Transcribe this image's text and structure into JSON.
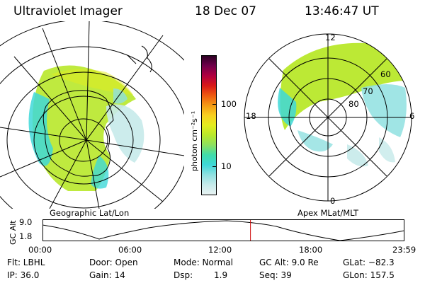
{
  "header": {
    "instrument": "Ultraviolet Imager",
    "date": "18 Dec 07",
    "time": "13:46:47 UT"
  },
  "left_map": {
    "caption": "Geographic Lat/Lon"
  },
  "right_map": {
    "caption": "Apex MLat/MLT",
    "mlt_labels": {
      "top": "12",
      "bottom": "0",
      "left": "18",
      "right": "6"
    },
    "mlat_labels": [
      "60",
      "70",
      "80"
    ]
  },
  "colorbar": {
    "unit_label": "photon cm⁻²s⁻¹",
    "ticks": [
      {
        "label": "100",
        "value": 100
      },
      {
        "label": "10",
        "value": 10
      }
    ],
    "scale": "log",
    "colors": [
      "#e8f2f2",
      "#c6eaea",
      "#8fe0e0",
      "#3ed8d8",
      "#40dcaa",
      "#8ce060",
      "#b8e82a",
      "#e4ec1e",
      "#f8d020",
      "#f49a14",
      "#ee5a10",
      "#d81818",
      "#b00040",
      "#70004a",
      "#2c0024"
    ]
  },
  "altitude_plot": {
    "ylabel": "GC Alt",
    "y_ticks": [
      "9.0",
      "1.8"
    ],
    "x_ticks": [
      "00:00",
      "06:00",
      "12:00",
      "18:00",
      "23:59"
    ],
    "current_time_fraction": 0.5745,
    "marker_color": "#d01010"
  },
  "status": {
    "flt": "Flt: LBHL",
    "ip": "IP: 36.0",
    "door": "Door: Open",
    "gain": "Gain: 14",
    "mode": "Mode: Normal",
    "dsp_label": "Dsp:",
    "dsp_value": "1.9",
    "gc_alt": "GC Alt: 9.0 Re",
    "seq": "Seq: 39",
    "glat": "GLat: −82.3",
    "glon": "GLon: 157.5"
  }
}
